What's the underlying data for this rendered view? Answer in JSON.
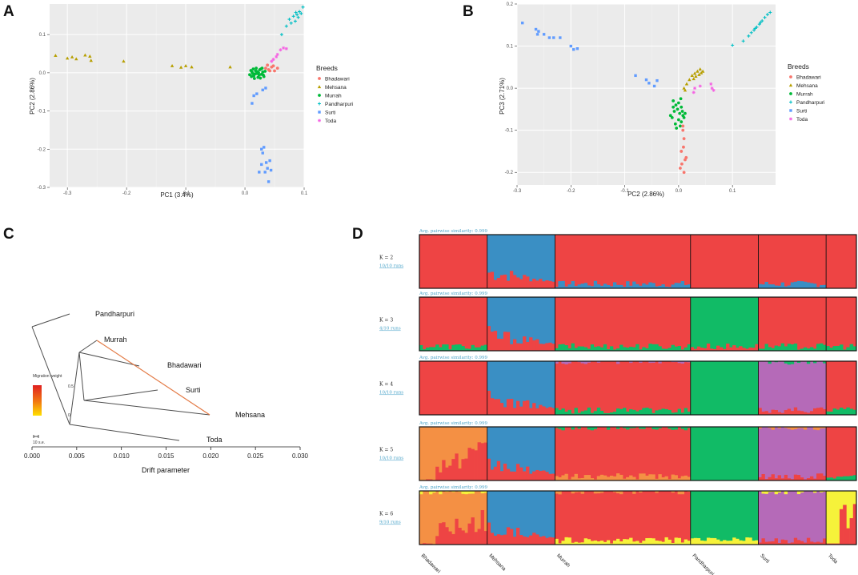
{
  "panels": {
    "a": "A",
    "b": "B",
    "c": "C",
    "d": "D"
  },
  "colors": {
    "Bhadawari": "#f8766d",
    "Mehsana": "#b79f00",
    "Murrah": "#00ba38",
    "Pandharpuri": "#00bfc4",
    "Surti": "#619cff",
    "Toda": "#f564e3",
    "k_red": "#ee4444",
    "k_blue": "#3a8fc4",
    "k_green": "#11bb66",
    "k_purple": "#b56ab8",
    "k_orange": "#f49044",
    "k_yellow": "#f6f23a"
  },
  "legend": {
    "title": "Breeds",
    "items": [
      "Bhadawari",
      "Mehsana",
      "Murrah",
      "Pandharpuri",
      "Surti",
      "Toda"
    ]
  },
  "chart_data": [
    {
      "type": "scatter",
      "panel": "A",
      "xlabel": "PC1 (3.4%)",
      "ylabel": "PC2 (2.86%)",
      "xlim": [
        -0.33,
        0.1
      ],
      "ylim": [
        -0.3,
        0.18
      ],
      "xticks": [
        -0.3,
        -0.2,
        -0.1,
        0.0,
        0.1
      ],
      "xtick_labels": [
        "-0.3",
        "-0.2",
        "-0.1",
        "0.0",
        "0.1"
      ],
      "yticks": [
        0.1,
        0.0,
        -0.1,
        -0.2,
        -0.3
      ],
      "ytick_labels": [
        "0.1",
        "0.0",
        "-0.1",
        "-0.2",
        "-0.3"
      ],
      "series": [
        {
          "name": "Mehsana",
          "points": [
            [
              -0.32,
              0.045
            ],
            [
              -0.3,
              0.038
            ],
            [
              -0.292,
              0.041
            ],
            [
              -0.285,
              0.036
            ],
            [
              -0.27,
              0.046
            ],
            [
              -0.26,
              0.032
            ],
            [
              -0.262,
              0.043
            ],
            [
              -0.205,
              0.03
            ],
            [
              -0.123,
              0.018
            ],
            [
              -0.108,
              0.014
            ],
            [
              -0.1,
              0.018
            ],
            [
              -0.09,
              0.015
            ],
            [
              -0.025,
              0.015
            ]
          ]
        },
        {
          "name": "Pandharpuri",
          "points": [
            [
              0.062,
              0.1
            ],
            [
              0.07,
              0.122
            ],
            [
              0.075,
              0.14
            ],
            [
              0.082,
              0.148
            ],
            [
              0.088,
              0.152
            ],
            [
              0.092,
              0.16
            ],
            [
              0.085,
              0.135
            ],
            [
              0.09,
              0.145
            ],
            [
              0.095,
              0.155
            ],
            [
              0.098,
              0.172
            ],
            [
              0.078,
              0.13
            ],
            [
              0.086,
              0.158
            ]
          ]
        },
        {
          "name": "Toda",
          "points": [
            [
              0.06,
              0.06
            ],
            [
              0.065,
              0.065
            ],
            [
              0.07,
              0.063
            ],
            [
              0.053,
              0.042
            ],
            [
              0.055,
              0.048
            ],
            [
              0.048,
              0.035
            ],
            [
              0.045,
              0.03
            ]
          ]
        },
        {
          "name": "Bhadawari",
          "points": [
            [
              0.035,
              0.012
            ],
            [
              0.04,
              0.008
            ],
            [
              0.045,
              0.015
            ],
            [
              0.038,
              0.02
            ],
            [
              0.05,
              0.005
            ],
            [
              0.055,
              0.012
            ],
            [
              0.042,
              0.005
            ],
            [
              0.048,
              0.018
            ]
          ]
        },
        {
          "name": "Murrah",
          "points": [
            [
              0.008,
              -0.005
            ],
            [
              0.012,
              0.002
            ],
            [
              0.015,
              -0.008
            ],
            [
              0.018,
              0.005
            ],
            [
              0.02,
              -0.002
            ],
            [
              0.022,
              -0.012
            ],
            [
              0.025,
              0.008
            ],
            [
              0.028,
              -0.004
            ],
            [
              0.03,
              0.002
            ],
            [
              0.032,
              -0.01
            ],
            [
              0.014,
              0.01
            ],
            [
              0.016,
              -0.015
            ],
            [
              0.019,
              0.012
            ],
            [
              0.024,
              -0.006
            ],
            [
              0.027,
              0.01
            ],
            [
              0.011,
              -0.01
            ],
            [
              0.021,
              0.003
            ],
            [
              0.034,
              0.004
            ],
            [
              0.017,
              -0.003
            ],
            [
              0.026,
              -0.014
            ],
            [
              0.01,
              0.006
            ],
            [
              0.029,
              0.012
            ],
            [
              0.013,
              -0.002
            ],
            [
              0.023,
              0.0
            ],
            [
              0.031,
              -0.006
            ]
          ]
        },
        {
          "name": "Surti",
          "points": [
            [
              0.02,
              -0.055
            ],
            [
              0.015,
              -0.06
            ],
            [
              0.012,
              -0.08
            ],
            [
              0.03,
              -0.045
            ],
            [
              0.035,
              -0.04
            ],
            [
              0.028,
              -0.2
            ],
            [
              0.032,
              -0.195
            ],
            [
              0.03,
              -0.21
            ],
            [
              0.036,
              -0.235
            ],
            [
              0.042,
              -0.23
            ],
            [
              0.028,
              -0.24
            ],
            [
              0.038,
              -0.25
            ],
            [
              0.034,
              -0.26
            ],
            [
              0.024,
              -0.26
            ],
            [
              0.044,
              -0.255
            ],
            [
              0.04,
              -0.285
            ]
          ]
        }
      ]
    },
    {
      "type": "scatter",
      "panel": "B",
      "xlabel": "PC2 (2.86%)",
      "ylabel": "PC3 (2.71%)",
      "xlim": [
        -0.3,
        0.18
      ],
      "ylim": [
        -0.23,
        0.2
      ],
      "xticks": [
        -0.3,
        -0.2,
        -0.1,
        0.0,
        0.1
      ],
      "xtick_labels": [
        "-0.3",
        "-0.2",
        "-0.1",
        "0.0",
        "0.1"
      ],
      "yticks": [
        0.2,
        0.1,
        0.0,
        -0.1,
        -0.2
      ],
      "ytick_labels": [
        "0.2",
        "0.1",
        "0.0",
        "-0.1",
        "-0.2"
      ],
      "series": [
        {
          "name": "Surti",
          "points": [
            [
              -0.29,
              0.155
            ],
            [
              -0.265,
              0.14
            ],
            [
              -0.26,
              0.135
            ],
            [
              -0.262,
              0.128
            ],
            [
              -0.25,
              0.128
            ],
            [
              -0.24,
              0.12
            ],
            [
              -0.232,
              0.12
            ],
            [
              -0.22,
              0.12
            ],
            [
              -0.2,
              0.1
            ],
            [
              -0.195,
              0.092
            ],
            [
              -0.188,
              0.094
            ],
            [
              -0.08,
              0.03
            ],
            [
              -0.06,
              0.02
            ],
            [
              -0.055,
              0.012
            ],
            [
              -0.04,
              0.018
            ],
            [
              -0.045,
              0.005
            ]
          ]
        },
        {
          "name": "Pandharpuri",
          "points": [
            [
              0.1,
              0.102
            ],
            [
              0.12,
              0.112
            ],
            [
              0.13,
              0.124
            ],
            [
              0.135,
              0.132
            ],
            [
              0.14,
              0.138
            ],
            [
              0.145,
              0.145
            ],
            [
              0.15,
              0.152
            ],
            [
              0.155,
              0.16
            ],
            [
              0.16,
              0.168
            ],
            [
              0.165,
              0.175
            ],
            [
              0.17,
              0.18
            ],
            [
              0.142,
              0.142
            ],
            [
              0.152,
              0.156
            ]
          ]
        },
        {
          "name": "Mehsana",
          "points": [
            [
              0.01,
              0.0
            ],
            [
              0.015,
              0.01
            ],
            [
              0.02,
              0.02
            ],
            [
              0.025,
              0.03
            ],
            [
              0.03,
              0.035
            ],
            [
              0.035,
              0.04
            ],
            [
              0.04,
              0.045
            ],
            [
              0.045,
              0.04
            ],
            [
              0.032,
              0.028
            ],
            [
              0.038,
              0.032
            ],
            [
              0.042,
              0.036
            ],
            [
              0.012,
              -0.005
            ],
            [
              0.028,
              0.022
            ]
          ]
        },
        {
          "name": "Toda",
          "points": [
            [
              0.03,
              0.0
            ],
            [
              0.04,
              0.005
            ],
            [
              0.06,
              0.01
            ],
            [
              0.062,
              0.0
            ],
            [
              0.065,
              -0.005
            ],
            [
              0.028,
              -0.01
            ]
          ]
        },
        {
          "name": "Murrah",
          "points": [
            [
              -0.01,
              -0.03
            ],
            [
              -0.005,
              -0.04
            ],
            [
              0.0,
              -0.035
            ],
            [
              0.005,
              -0.045
            ],
            [
              -0.008,
              -0.055
            ],
            [
              0.002,
              -0.06
            ],
            [
              0.008,
              -0.065
            ],
            [
              -0.012,
              -0.07
            ],
            [
              0.0,
              -0.075
            ],
            [
              0.005,
              -0.08
            ],
            [
              -0.006,
              -0.085
            ],
            [
              0.003,
              -0.09
            ],
            [
              -0.002,
              -0.05
            ],
            [
              0.01,
              -0.07
            ],
            [
              -0.015,
              -0.065
            ],
            [
              0.007,
              -0.055
            ],
            [
              -0.004,
              -0.095
            ],
            [
              0.012,
              -0.06
            ],
            [
              -0.01,
              -0.045
            ],
            [
              0.004,
              -0.025
            ]
          ]
        },
        {
          "name": "Bhadawari",
          "points": [
            [
              0.008,
              -0.1
            ],
            [
              0.01,
              -0.12
            ],
            [
              0.005,
              -0.15
            ],
            [
              0.012,
              -0.17
            ],
            [
              0.006,
              -0.18
            ],
            [
              0.01,
              -0.2
            ],
            [
              0.003,
              -0.19
            ],
            [
              0.014,
              -0.165
            ],
            [
              0.008,
              -0.09
            ],
            [
              0.009,
              -0.14
            ]
          ]
        }
      ]
    },
    {
      "type": "tree",
      "panel": "C",
      "xlabel": "Drift parameter",
      "xlim": [
        0,
        0.03
      ],
      "xticks": [
        0.0,
        0.005,
        0.01,
        0.015,
        0.02,
        0.025,
        0.03
      ],
      "xtick_labels": [
        "0.000",
        "0.005",
        "0.010",
        "0.015",
        "0.020",
        "0.025",
        "0.030"
      ],
      "leaves": [
        "Pandharpuri",
        "Murrah",
        "Bhadawari",
        "Surti",
        "Mehsana",
        "Toda"
      ],
      "node_labels": [
        "0.5",
        "0"
      ],
      "migration": {
        "from": "Murrah",
        "to": "Mehsana"
      },
      "migration_legend_title": "Migration weight",
      "scale_label": "10 s.e."
    },
    {
      "type": "admixture",
      "panel": "D",
      "populations": [
        "Bhadawari",
        "Mehsana",
        "Murrah",
        "Pandharpuri",
        "Surti",
        "Toda"
      ],
      "population_widths": [
        85,
        85,
        170,
        85,
        85,
        38
      ],
      "rows": [
        {
          "k_label": "K = 2",
          "runs_label": "10/10 runs",
          "similarity_label": "Avg. pairwise similarity: 0.999",
          "blocks": [
            [
              "k_red"
            ],
            [
              "k_blue",
              "k_red"
            ],
            [
              "k_red",
              "k_blue"
            ],
            [
              "k_red"
            ],
            [
              "k_red",
              "k_blue"
            ],
            [
              "k_red"
            ]
          ]
        },
        {
          "k_label": "K = 3",
          "runs_label": "4/10 runs",
          "similarity_label": "Avg. pairwise similarity: 0.999",
          "blocks": [
            [
              "k_red",
              "k_green"
            ],
            [
              "k_blue",
              "k_red"
            ],
            [
              "k_red",
              "k_green"
            ],
            [
              "k_green",
              "k_red"
            ],
            [
              "k_red",
              "k_green"
            ],
            [
              "k_red",
              "k_green"
            ]
          ]
        },
        {
          "k_label": "K = 4",
          "runs_label": "10/10 runs",
          "similarity_label": "Avg. pairwise similarity: 0.999",
          "blocks": [
            [
              "k_red"
            ],
            [
              "k_blue",
              "k_red"
            ],
            [
              "k_red",
              "k_green",
              "k_purple"
            ],
            [
              "k_green"
            ],
            [
              "k_purple",
              "k_red",
              "k_green"
            ],
            [
              "k_red",
              "k_green"
            ]
          ]
        },
        {
          "k_label": "K = 5",
          "runs_label": "10/10 runs",
          "similarity_label": "Avg. pairwise similarity: 0.999",
          "blocks": [
            [
              "k_orange",
              "k_red"
            ],
            [
              "k_blue",
              "k_red"
            ],
            [
              "k_red",
              "k_orange",
              "k_green"
            ],
            [
              "k_green"
            ],
            [
              "k_purple",
              "k_red",
              "k_orange"
            ],
            [
              "k_red",
              "k_green"
            ]
          ]
        },
        {
          "k_label": "K = 6",
          "runs_label": "9/10 runs",
          "similarity_label": "Avg. pairwise similarity: 0.999",
          "blocks": [
            [
              "k_orange",
              "k_red",
              "k_yellow"
            ],
            [
              "k_blue",
              "k_red"
            ],
            [
              "k_red",
              "k_yellow",
              "k_orange"
            ],
            [
              "k_green",
              "k_yellow"
            ],
            [
              "k_purple",
              "k_red",
              "k_yellow"
            ],
            [
              "k_yellow",
              "k_red"
            ]
          ]
        }
      ]
    }
  ]
}
